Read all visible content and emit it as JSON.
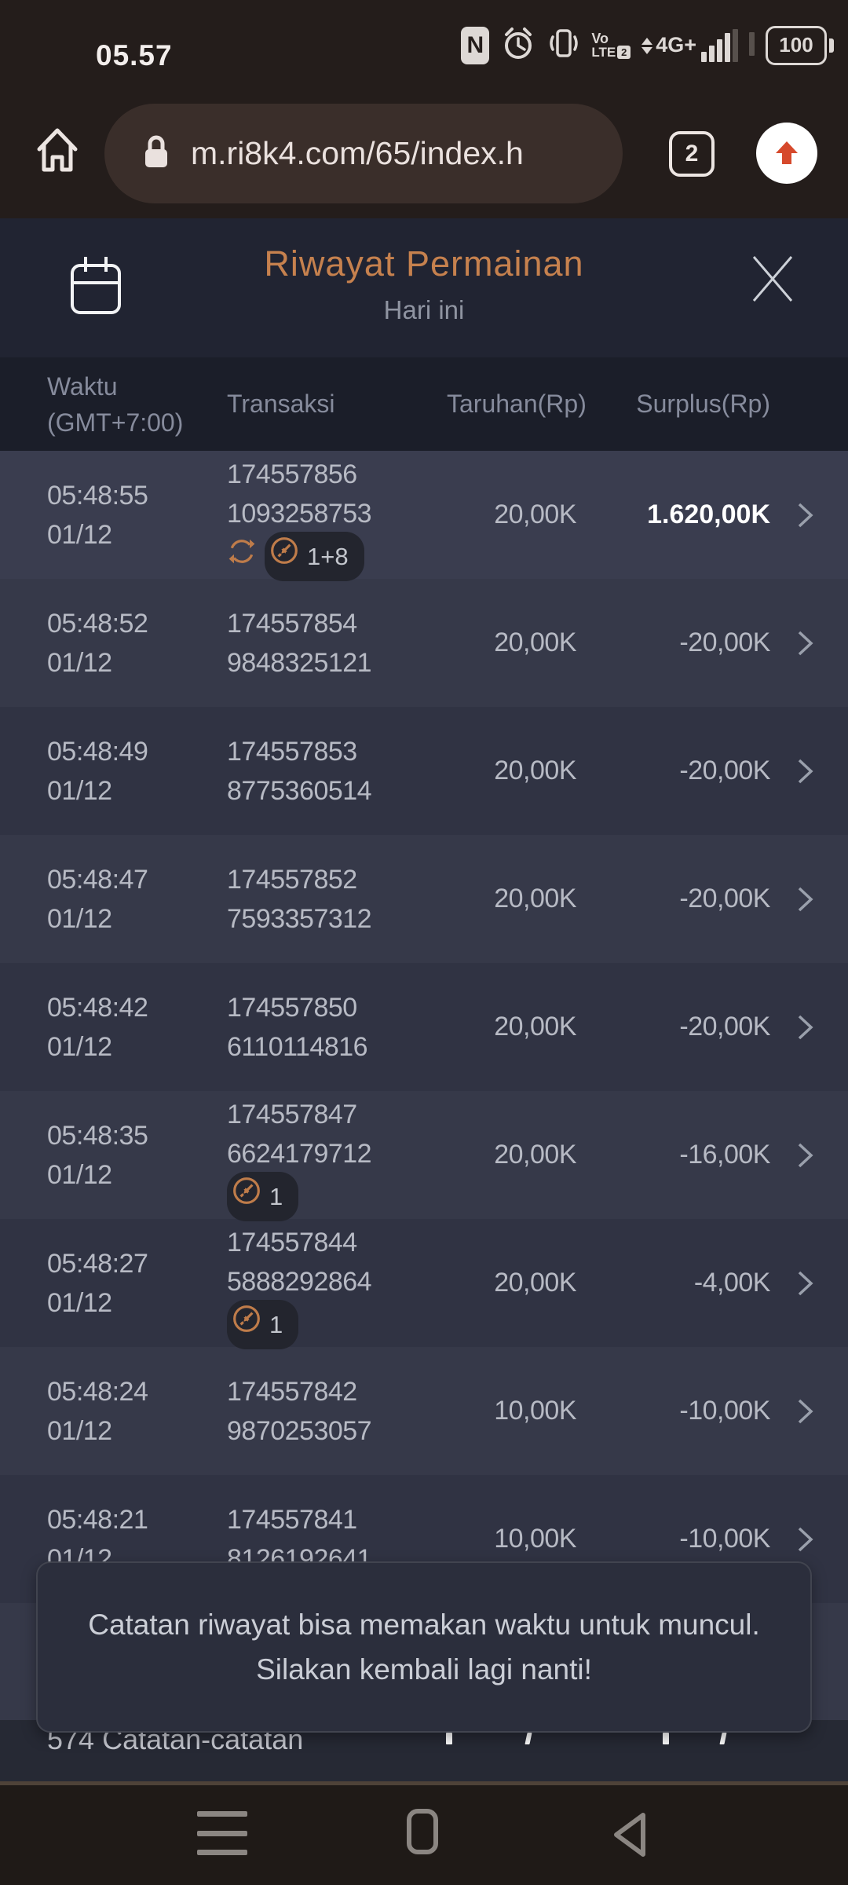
{
  "status_bar": {
    "time": "05.57",
    "volte_top": "Vo",
    "volte_bottom": "LTE",
    "volte_badge": "2",
    "network": "4G+",
    "battery_level": "100"
  },
  "browser": {
    "url": "m.ri8k4.com/65/index.h",
    "tab_count": "2"
  },
  "page_header": {
    "title": "Riwayat Permainan",
    "subtitle": "Hari ini"
  },
  "table": {
    "header": {
      "col_time_line1": "Waktu",
      "col_time_line2": "(GMT+7:00)",
      "col_transaction": "Transaksi",
      "col_bet": "Taruhan(Rp)",
      "col_surplus": "Surplus(Rp)"
    },
    "rows": [
      {
        "time": "05:48:55",
        "date": "01/12",
        "id1": "174557856",
        "id2": "1093258753",
        "sync": true,
        "pill": "1+8",
        "bet": "20,00K",
        "surplus": "1.620,00K",
        "surplus_highlight": true,
        "highlight": true
      },
      {
        "time": "05:48:52",
        "date": "01/12",
        "id1": "174557854",
        "id2": "9848325121",
        "bet": "20,00K",
        "surplus": "-20,00K"
      },
      {
        "time": "05:48:49",
        "date": "01/12",
        "id1": "174557853",
        "id2": "8775360514",
        "bet": "20,00K",
        "surplus": "-20,00K"
      },
      {
        "time": "05:48:47",
        "date": "01/12",
        "id1": "174557852",
        "id2": "7593357312",
        "bet": "20,00K",
        "surplus": "-20,00K"
      },
      {
        "time": "05:48:42",
        "date": "01/12",
        "id1": "174557850",
        "id2": "6110114816",
        "bet": "20,00K",
        "surplus": "-20,00K"
      },
      {
        "time": "05:48:35",
        "date": "01/12",
        "id1": "174557847",
        "id2": "6624179712",
        "pill": "1",
        "bet": "20,00K",
        "surplus": "-16,00K"
      },
      {
        "time": "05:48:27",
        "date": "01/12",
        "id1": "174557844",
        "id2": "5888292864",
        "pill": "1",
        "bet": "20,00K",
        "surplus": "-4,00K"
      },
      {
        "time": "05:48:24",
        "date": "01/12",
        "id1": "174557842",
        "id2": "9870253057",
        "bet": "10,00K",
        "surplus": "-10,00K"
      },
      {
        "time": "05:48:21",
        "date": "01/12",
        "id1": "174557841",
        "id2": "8126192641",
        "bet": "10,00K",
        "surplus": "-10,00K"
      }
    ],
    "footer": {
      "records_label": "574 Catatan-catatan"
    }
  },
  "toast": {
    "message": "Catatan riwayat bisa memakan waktu untuk muncul. Silakan kembali lagi nanti!"
  },
  "colors": {
    "accent_orange": "#bf7c4a",
    "title_orange": "#c6814e",
    "win_white": "#ffffff",
    "share_arrow_red": "#d6492c"
  }
}
